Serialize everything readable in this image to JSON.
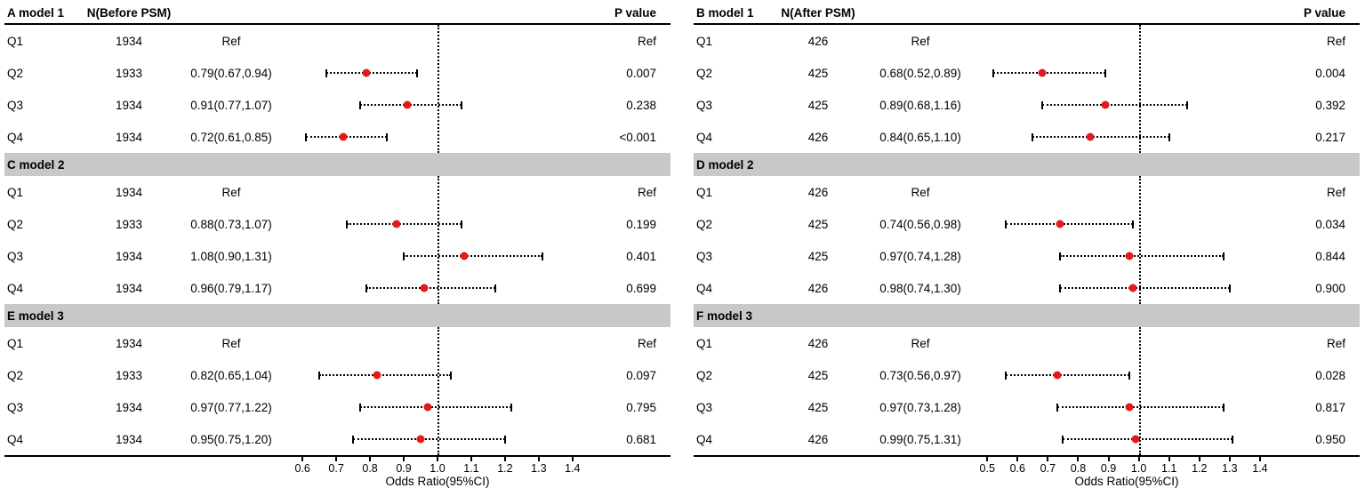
{
  "figure": {
    "background": "#ffffff",
    "band_color": "#c8c8c8",
    "point_color": "#e31a1c",
    "line_color": "#000000"
  },
  "chart_data": [
    {
      "type": "forest",
      "header": {
        "model_label": "A model 1",
        "n_label": "N(Before PSM)",
        "p_label": "P value"
      },
      "xlabel": "Odds Ratio(95%CI)",
      "ref_line": 1.0,
      "xlim": [
        0.56,
        1.44
      ],
      "x_ticks": [
        "0.6",
        "0.7",
        "0.8",
        "0.9",
        "1.0",
        "1.1",
        "1.2",
        "1.3",
        "1.4"
      ],
      "sections": [
        {
          "title": null,
          "rows": [
            {
              "label": "Q1",
              "n": "1934",
              "or_text": "Ref",
              "p": "Ref",
              "est": null,
              "lo": null,
              "hi": null
            },
            {
              "label": "Q2",
              "n": "1933",
              "or_text": "0.79(0.67,0.94)",
              "p": "0.007",
              "est": 0.79,
              "lo": 0.67,
              "hi": 0.94
            },
            {
              "label": "Q3",
              "n": "1934",
              "or_text": "0.91(0.77,1.07)",
              "p": "0.238",
              "est": 0.91,
              "lo": 0.77,
              "hi": 1.07
            },
            {
              "label": "Q4",
              "n": "1934",
              "or_text": "0.72(0.61,0.85)",
              "p": "<0.001",
              "est": 0.72,
              "lo": 0.61,
              "hi": 0.85
            }
          ]
        },
        {
          "title": "C model 2",
          "rows": [
            {
              "label": "Q1",
              "n": "1934",
              "or_text": "Ref",
              "p": "Ref",
              "est": null,
              "lo": null,
              "hi": null
            },
            {
              "label": "Q2",
              "n": "1933",
              "or_text": "0.88(0.73,1.07)",
              "p": "0.199",
              "est": 0.88,
              "lo": 0.73,
              "hi": 1.07
            },
            {
              "label": "Q3",
              "n": "1934",
              "or_text": "1.08(0.90,1.31)",
              "p": "0.401",
              "est": 1.08,
              "lo": 0.9,
              "hi": 1.31
            },
            {
              "label": "Q4",
              "n": "1934",
              "or_text": "0.96(0.79,1.17)",
              "p": "0.699",
              "est": 0.96,
              "lo": 0.79,
              "hi": 1.17
            }
          ]
        },
        {
          "title": "E model 3",
          "rows": [
            {
              "label": "Q1",
              "n": "1934",
              "or_text": "Ref",
              "p": "Ref",
              "est": null,
              "lo": null,
              "hi": null
            },
            {
              "label": "Q2",
              "n": "1933",
              "or_text": "0.82(0.65,1.04)",
              "p": "0.097",
              "est": 0.82,
              "lo": 0.65,
              "hi": 1.04
            },
            {
              "label": "Q3",
              "n": "1934",
              "or_text": "0.97(0.77,1.22)",
              "p": "0.795",
              "est": 0.97,
              "lo": 0.77,
              "hi": 1.22
            },
            {
              "label": "Q4",
              "n": "1934",
              "or_text": "0.95(0.75,1.20)",
              "p": "0.681",
              "est": 0.95,
              "lo": 0.75,
              "hi": 1.2
            }
          ]
        }
      ]
    },
    {
      "type": "forest",
      "header": {
        "model_label": "B model 1",
        "n_label": "N(After PSM)",
        "p_label": "P value"
      },
      "xlabel": "Odds Ratio(95%CI)",
      "ref_line": 1.0,
      "xlim": [
        0.47,
        1.45
      ],
      "x_ticks": [
        "0.5",
        "0.6",
        "0.7",
        "0.8",
        "0.9",
        "1.0",
        "1.1",
        "1.2",
        "1.3",
        "1.4"
      ],
      "sections": [
        {
          "title": null,
          "rows": [
            {
              "label": "Q1",
              "n": "426",
              "or_text": "Ref",
              "p": "Ref",
              "est": null,
              "lo": null,
              "hi": null
            },
            {
              "label": "Q2",
              "n": "425",
              "or_text": "0.68(0.52,0.89)",
              "p": "0.004",
              "est": 0.68,
              "lo": 0.52,
              "hi": 0.89
            },
            {
              "label": "Q3",
              "n": "425",
              "or_text": "0.89(0.68,1.16)",
              "p": "0.392",
              "est": 0.89,
              "lo": 0.68,
              "hi": 1.16
            },
            {
              "label": "Q4",
              "n": "426",
              "or_text": "0.84(0.65,1.10)",
              "p": "0.217",
              "est": 0.84,
              "lo": 0.65,
              "hi": 1.1
            }
          ]
        },
        {
          "title": "D model 2",
          "rows": [
            {
              "label": "Q1",
              "n": "426",
              "or_text": "Ref",
              "p": "Ref",
              "est": null,
              "lo": null,
              "hi": null
            },
            {
              "label": "Q2",
              "n": "425",
              "or_text": "0.74(0.56,0.98)",
              "p": "0.034",
              "est": 0.74,
              "lo": 0.56,
              "hi": 0.98
            },
            {
              "label": "Q3",
              "n": "425",
              "or_text": "0.97(0.74,1.28)",
              "p": "0.844",
              "est": 0.97,
              "lo": 0.74,
              "hi": 1.28
            },
            {
              "label": "Q4",
              "n": "426",
              "or_text": "0.98(0.74,1.30)",
              "p": "0.900",
              "est": 0.98,
              "lo": 0.74,
              "hi": 1.3
            }
          ]
        },
        {
          "title": "F model 3",
          "rows": [
            {
              "label": "Q1",
              "n": "426",
              "or_text": "Ref",
              "p": "Ref",
              "est": null,
              "lo": null,
              "hi": null
            },
            {
              "label": "Q2",
              "n": "425",
              "or_text": "0.73(0.56,0.97)",
              "p": "0.028",
              "est": 0.73,
              "lo": 0.56,
              "hi": 0.97
            },
            {
              "label": "Q3",
              "n": "425",
              "or_text": "0.97(0.73,1.28)",
              "p": "0.817",
              "est": 0.97,
              "lo": 0.73,
              "hi": 1.28
            },
            {
              "label": "Q4",
              "n": "426",
              "or_text": "0.99(0.75,1.31)",
              "p": "0.950",
              "est": 0.99,
              "lo": 0.75,
              "hi": 1.31
            }
          ]
        }
      ]
    }
  ]
}
